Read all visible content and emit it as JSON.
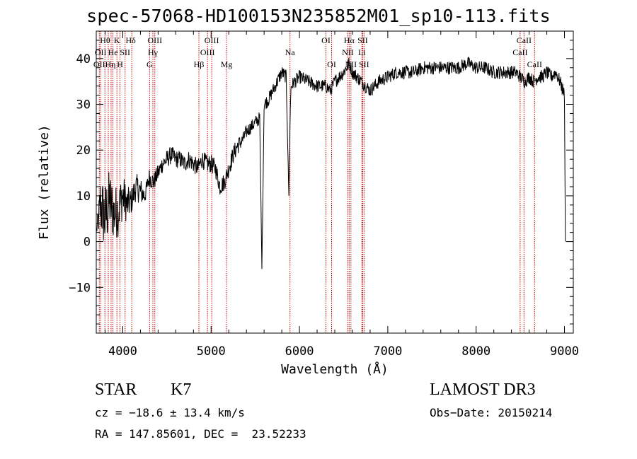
{
  "title": "spec-57068-HD100153N235852M01_sp10-113.fits",
  "chart_data": {
    "type": "line",
    "xlabel": "Wavelength (Å)",
    "ylabel": "Flux (relative)",
    "xlim": [
      3700,
      9100
    ],
    "ylim": [
      -20,
      46
    ],
    "x_ticks": [
      4000,
      5000,
      6000,
      7000,
      8000,
      9000
    ],
    "y_ticks": [
      -10,
      0,
      10,
      20,
      30,
      40
    ],
    "series": [
      {
        "x": [
          3700,
          3750,
          3800,
          3850,
          3900,
          3950,
          4000,
          4050,
          4100,
          4150,
          4200,
          4250,
          4300,
          4350,
          4400,
          4450,
          4500,
          4550,
          4600,
          4650,
          4700,
          4750,
          4800,
          4850,
          4900,
          4950,
          5000,
          5050,
          5100,
          5150,
          5200,
          5250,
          5300,
          5350,
          5400,
          5450,
          5500,
          5550,
          5575,
          5600,
          5650,
          5700,
          5750,
          5800,
          5850,
          5880,
          5893,
          5905,
          5950,
          6000,
          6100,
          6200,
          6300,
          6350,
          6400,
          6450,
          6500,
          6563,
          6600,
          6650,
          6700,
          6750,
          6800,
          6900,
          7000,
          7100,
          7200,
          7300,
          7400,
          7500,
          7600,
          7700,
          7800,
          7900,
          8000,
          8100,
          8200,
          8300,
          8400,
          8450,
          8500,
          8550,
          8600,
          8650,
          8700,
          8750,
          8800,
          8850,
          8900,
          8950,
          9000,
          9010
        ],
        "y": [
          2,
          8,
          5,
          9,
          6,
          7,
          10,
          8,
          9,
          12,
          11,
          10,
          14,
          13,
          15,
          17,
          18,
          19,
          18,
          18,
          17,
          18,
          17,
          16,
          18,
          17,
          17,
          16,
          12,
          13,
          16,
          19,
          21,
          22,
          24,
          25,
          26,
          27,
          -6,
          30,
          31,
          33,
          35,
          37,
          36,
          10,
          26,
          34,
          35,
          36,
          35,
          34,
          34,
          33,
          35,
          36,
          37,
          39,
          37,
          36,
          35,
          34,
          33,
          35,
          36,
          37,
          37,
          37,
          38,
          38,
          38,
          38,
          38,
          39,
          38,
          38,
          37,
          37,
          37,
          37,
          36,
          35,
          36,
          35,
          36,
          36,
          37,
          36,
          37,
          35,
          32,
          0
        ],
        "noise": [
          0,
          7,
          8,
          7,
          6,
          6,
          5,
          4,
          3,
          3,
          3,
          2,
          2,
          2,
          2,
          2,
          2,
          2,
          2,
          2,
          2,
          2,
          2,
          2,
          2,
          2,
          2,
          2,
          2,
          2,
          2,
          2,
          2,
          1.5,
          1.5,
          1.5,
          1.5,
          1.5,
          0,
          1.5,
          1.5,
          1.5,
          1.5,
          1.5,
          1.5,
          0,
          1.5,
          1.5,
          1.5,
          1.5,
          1.5,
          1.5,
          1.5,
          1.5,
          1.5,
          1.5,
          1.5,
          1.5,
          1.5,
          1.5,
          1.5,
          1.5,
          1.5,
          1.5,
          1.5,
          1.5,
          1.5,
          1.5,
          1.5,
          1.5,
          1.5,
          1.5,
          1.5,
          1.5,
          1.5,
          1.5,
          1.5,
          1.5,
          1.5,
          1.5,
          1.5,
          1.5,
          1.5,
          1.5,
          1.5,
          1.5,
          1.5,
          1.5,
          1.5,
          1.5,
          1.5,
          0
        ]
      }
    ],
    "lines": [
      {
        "x": 3734,
        "labels": [
          {
            "row": 2,
            "text": "OII"
          }
        ]
      },
      {
        "x": 3750,
        "labels": [
          {
            "row": 1,
            "text": "OII"
          }
        ]
      },
      {
        "x": 3798,
        "labels": []
      },
      {
        "x": 3836,
        "labels": []
      },
      {
        "x": 3868,
        "labels": []
      },
      {
        "x": 3889,
        "labels": [
          {
            "row": 1,
            "text": "He"
          }
        ]
      },
      {
        "x": 3934,
        "labels": [
          {
            "row": 0,
            "text": "K"
          }
        ]
      },
      {
        "x": 3969,
        "labels": [
          {
            "row": 2,
            "text": "H"
          }
        ]
      },
      {
        "x": 4026,
        "labels": [
          {
            "row": 1,
            "text": "SII"
          }
        ]
      },
      {
        "x": 4102,
        "labels": []
      },
      {
        "x": 4304,
        "labels": [
          {
            "row": 2,
            "text": "G"
          }
        ]
      },
      {
        "x": 4341,
        "labels": []
      },
      {
        "x": 4363,
        "labels": [
          {
            "row": 0,
            "text": "OIII"
          }
        ]
      },
      {
        "x": 4862,
        "labels": []
      },
      {
        "x": 4959,
        "labels": [
          {
            "row": 1,
            "text": "OIII"
          }
        ]
      },
      {
        "x": 5007,
        "labels": [
          {
            "row": 0,
            "text": "OIII"
          }
        ]
      },
      {
        "x": 5175,
        "labels": [
          {
            "row": 2,
            "text": "Mg"
          }
        ]
      },
      {
        "x": 5893,
        "labels": [
          {
            "row": 1,
            "text": "Na"
          }
        ]
      },
      {
        "x": 6300,
        "labels": [
          {
            "row": 0,
            "text": "OI"
          }
        ]
      },
      {
        "x": 6364,
        "labels": [
          {
            "row": 2,
            "text": "OI"
          }
        ]
      },
      {
        "x": 6548,
        "labels": [
          {
            "row": 1,
            "text": "NII"
          }
        ]
      },
      {
        "x": 6563,
        "labels": []
      },
      {
        "x": 6583,
        "labels": [
          {
            "row": 2,
            "text": "NII"
          }
        ]
      },
      {
        "x": 6707,
        "labels": [
          {
            "row": 1,
            "text": "Li"
          }
        ]
      },
      {
        "x": 6716,
        "labels": [
          {
            "row": 0,
            "text": "SII"
          }
        ]
      },
      {
        "x": 6731,
        "labels": [
          {
            "row": 2,
            "text": "SII"
          }
        ]
      },
      {
        "x": 8498,
        "labels": [
          {
            "row": 1,
            "text": "CaII"
          }
        ]
      },
      {
        "x": 8542,
        "labels": [
          {
            "row": 0,
            "text": "CaII"
          }
        ]
      },
      {
        "x": 8662,
        "labels": [
          {
            "row": 2,
            "text": "CaII"
          }
        ]
      }
    ],
    "greek_labels": [
      {
        "row": 0,
        "x": 3800,
        "base": "H",
        "sym": "θ"
      },
      {
        "row": 2,
        "x": 3860,
        "base": "H",
        "sym": "η"
      },
      {
        "row": 0,
        "x": 4090,
        "base": "H",
        "sym": "δ"
      },
      {
        "row": 1,
        "x": 4341,
        "base": "H",
        "sym": "γ"
      },
      {
        "row": 2,
        "x": 4862,
        "base": "H",
        "sym": "β"
      },
      {
        "row": 0,
        "x": 6563,
        "base": "H",
        "sym": "α"
      }
    ]
  },
  "info": {
    "class": "STAR",
    "subclass": "K7",
    "survey": "LAMOST DR3",
    "cz": "cz = −18.6 ± 13.4 km/s",
    "obs_date": "Obs−Date: 20150214",
    "radec": "RA = 147.85601, DEC =  23.52233"
  }
}
